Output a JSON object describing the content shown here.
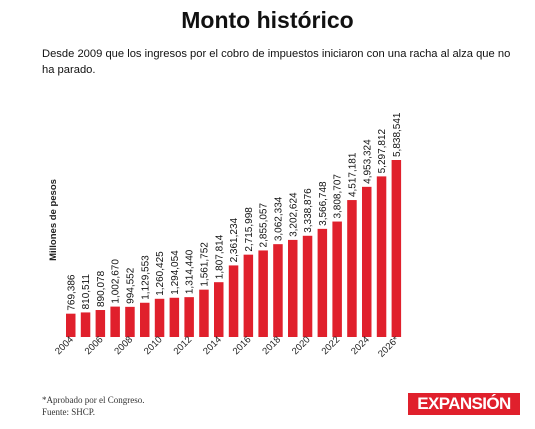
{
  "title": "Monto histórico",
  "subtitle": "Desde 2009 que los ingresos por el cobro de impuestos iniciaron con una racha al alza que no ha parado.",
  "footnote": {
    "note": "*Aprobado por el Congreso.",
    "source": "Fuente: SHCP."
  },
  "brand": {
    "logo_text": "EXPANSIÓN",
    "color": "#e0202c"
  },
  "chart_data": {
    "type": "bar",
    "ylabel": "Millones de pesos",
    "xlabel": "",
    "ylim": [
      0,
      5838541
    ],
    "grid": false,
    "legend": "none",
    "bar_color": "#e0202c",
    "categories": [
      "2004",
      "2005",
      "2006",
      "2007",
      "2008",
      "2009",
      "2010",
      "2011",
      "2012",
      "2013",
      "2014",
      "2015",
      "2016",
      "2017",
      "2018",
      "2019",
      "2020",
      "2021",
      "2022",
      "2023",
      "2024",
      "2025",
      "2026*"
    ],
    "values": [
      769386,
      810511,
      890078,
      1002670,
      994552,
      1129553,
      1260425,
      1294054,
      1314440,
      1561752,
      1807814,
      2361234,
      2715998,
      2855057,
      3062334,
      3202624,
      3338876,
      3566748,
      3808707,
      4517181,
      4953324,
      5297812,
      5838541
    ],
    "value_labels": [
      "769,386",
      "810,511",
      "890,078",
      "1,002,670",
      "994,552",
      "1,129,553",
      "1,260,425",
      "1,294,054",
      "1,314,440",
      "1,561,752",
      "1,807,814",
      "2,361,234",
      "2,715,998",
      "2,855,057",
      "3,062,334",
      "3,202,624",
      "3,338,876",
      "3,566,748",
      "3,808,707",
      "4,517,181",
      "4,953,324",
      "5,297,812",
      "5,838,541"
    ],
    "tick_labels": [
      "2004",
      "",
      "2006",
      "",
      "2008",
      "",
      "2010",
      "",
      "2012",
      "",
      "2014",
      "",
      "2016",
      "",
      "2018",
      "",
      "2020",
      "",
      "2022",
      "",
      "2024",
      "",
      "2026*"
    ]
  }
}
